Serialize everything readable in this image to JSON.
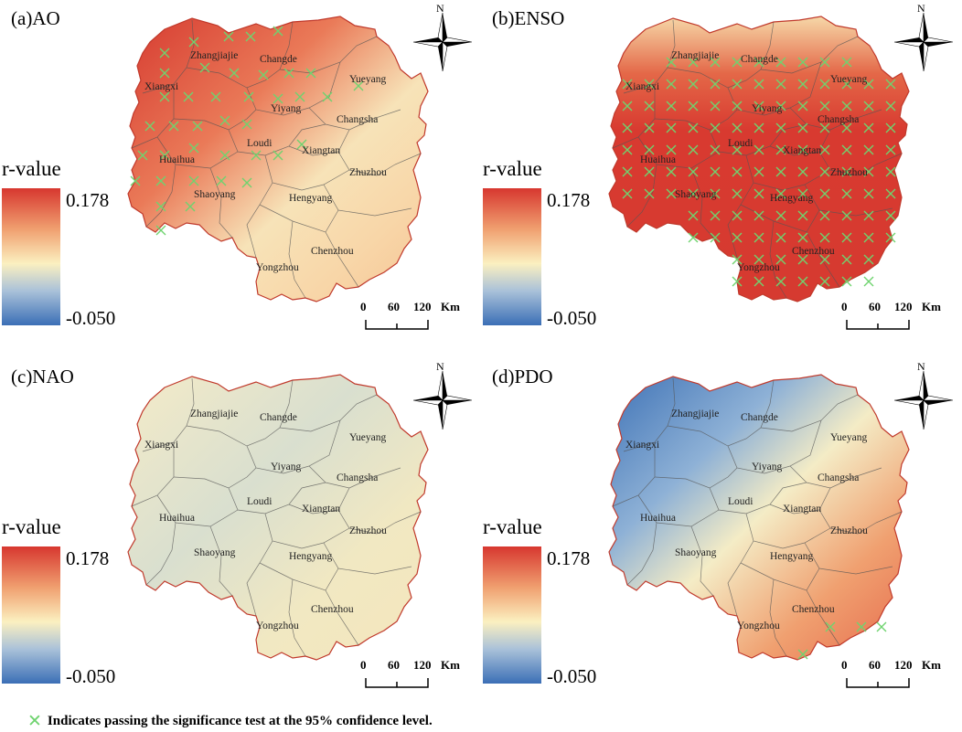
{
  "colorbar": {
    "title": "r-value",
    "max_label": "0.178",
    "min_label": "-0.050",
    "max": 0.178,
    "min": -0.05,
    "colors": [
      "#d7372f",
      "#f0a070",
      "#fbf0c0",
      "#a9c1d9",
      "#3b6fb6"
    ]
  },
  "scale_bar": {
    "labels": [
      "0",
      "60",
      "120"
    ],
    "unit": "Km"
  },
  "compass_label": "N",
  "cities": [
    "Zhangjiajie",
    "Changde",
    "Xiangxi",
    "Yueyang",
    "Yiyang",
    "Changsha",
    "Loudi",
    "Xiangtan",
    "Huaihua",
    "Zhuzhou",
    "Shaoyang",
    "Hengyang",
    "Chenzhou",
    "Yongzhou"
  ],
  "panels": [
    {
      "id": "a",
      "title": "(a)AO",
      "gradient": "ao",
      "significant_markers": "north-west"
    },
    {
      "id": "b",
      "title": "(b)ENSO",
      "gradient": "enso",
      "significant_markers": "most of province"
    },
    {
      "id": "c",
      "title": "(c)NAO",
      "gradient": "nao",
      "significant_markers": "none"
    },
    {
      "id": "d",
      "title": "(d)PDO",
      "gradient": "pdo",
      "significant_markers": "Chenzhou area"
    }
  ],
  "legend_text": "Indicates passing the significance test at the 95% confidence level.",
  "legend_marker_color": "#6fd36f"
}
